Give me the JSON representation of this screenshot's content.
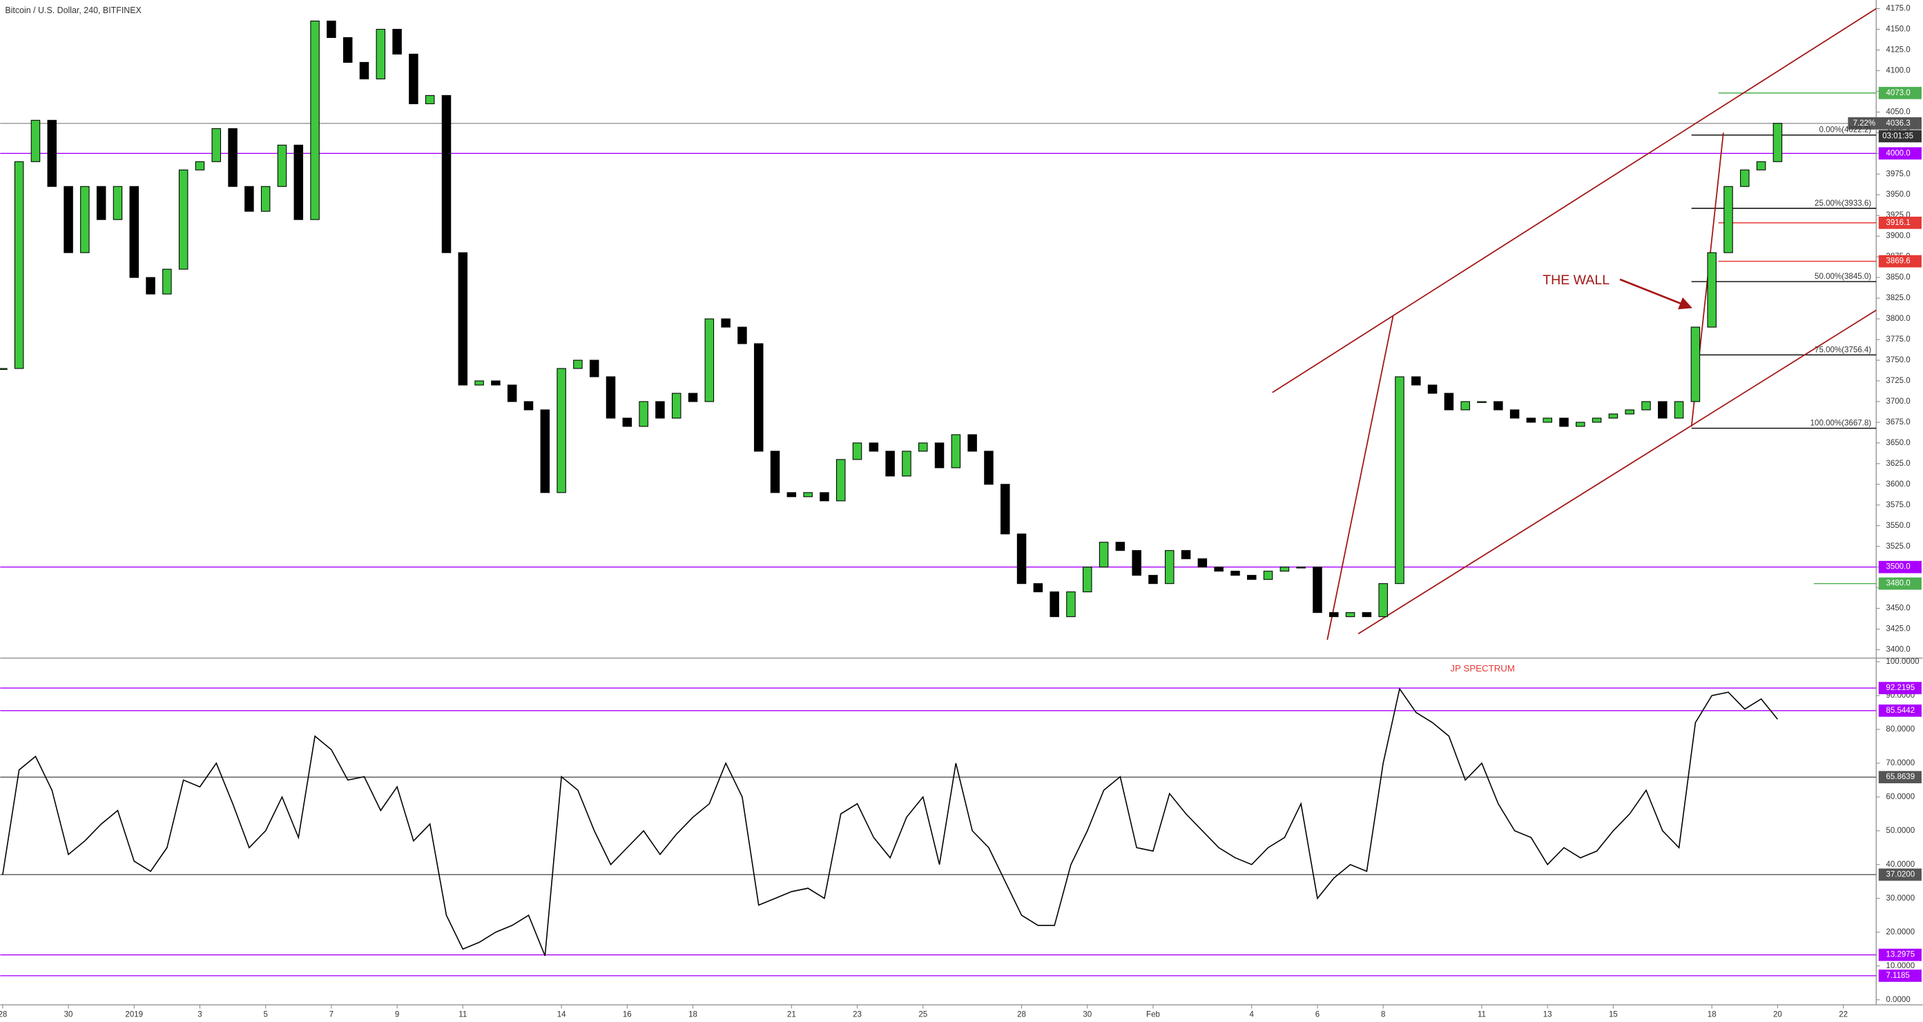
{
  "chart_data": [
    {
      "type": "candlestick",
      "title": "Bitcoin / U.S. Dollar, 240, BITFINEX",
      "annotation": "THE WALL",
      "x": [
        0,
        0.5,
        1,
        1.5,
        2,
        2.5,
        3,
        3.5,
        4,
        4.5,
        5,
        5.5,
        6,
        6.5,
        7,
        7.5,
        8,
        8.5,
        9,
        9.5,
        10,
        10.5,
        11,
        11.5,
        12,
        12.5,
        13,
        13.5,
        14,
        14.5,
        15,
        15.5,
        16,
        16.5,
        17,
        17.5,
        18,
        18.5,
        19,
        19.5,
        20,
        20.5,
        21,
        21.5,
        22,
        22.5,
        23,
        23.5,
        24,
        24.5,
        25,
        25.5,
        26,
        26.5,
        27,
        27.5,
        28,
        28.5,
        29,
        29.5,
        30,
        30.5,
        31,
        31.5,
        32,
        32.5,
        33,
        33.5,
        34,
        34.5,
        35,
        35.5,
        36,
        36.5,
        37,
        37.5,
        38,
        38.5,
        39,
        39.5,
        40,
        40.5,
        41,
        41.5,
        42,
        42.5,
        43,
        43.5,
        44,
        44.5,
        45,
        45.5,
        46,
        46.5,
        47,
        47.5,
        48,
        48.5,
        49,
        49.5,
        50,
        50.5,
        51,
        51.5,
        52,
        52.5,
        53,
        53.5,
        54
      ],
      "close": [
        3740,
        3990,
        4040,
        3960,
        3880,
        3960,
        3920,
        3960,
        3850,
        3830,
        3860,
        3980,
        3990,
        4030,
        3960,
        3930,
        3960,
        4010,
        3920,
        4160,
        4140,
        4110,
        4090,
        4150,
        4120,
        4060,
        4070,
        3880,
        3720,
        3725,
        3720,
        3700,
        3690,
        3590,
        3740,
        3750,
        3730,
        3680,
        3670,
        3700,
        3680,
        3710,
        3700,
        3800,
        3790,
        3770,
        3640,
        3590,
        3585,
        3590,
        3580,
        3630,
        3650,
        3640,
        3610,
        3640,
        3650,
        3620,
        3660,
        3640,
        3600,
        3540,
        3480,
        3470,
        3440,
        3470,
        3500,
        3530,
        3520,
        3490,
        3480,
        3520,
        3510,
        3500,
        3495,
        3490,
        3485,
        3495,
        3500,
        3500,
        3445,
        3440,
        3445,
        3440,
        3480,
        3730,
        3720,
        3710,
        3690,
        3700,
        3700,
        3690,
        3680,
        3675,
        3680,
        3670,
        3675,
        3680,
        3685,
        3690,
        3700,
        3680,
        3700,
        3790,
        3880,
        3960,
        3980,
        3990,
        4036.3
      ],
      "up_color": "#3ec83e",
      "down_color": "#000000",
      "grid": false,
      "xlim": [
        -0.075,
        57
      ],
      "ylim": [
        3390,
        4185.4
      ],
      "yticks": [
        {
          "value": 3400,
          "label": "3400.0"
        },
        {
          "value": 3425,
          "label": "3425.0"
        },
        {
          "value": 3450,
          "label": "3450.0"
        },
        {
          "value": 3475,
          "label": "3475.0"
        },
        {
          "value": 3500,
          "label": "3500.0"
        },
        {
          "value": 3525,
          "label": "3525.0"
        },
        {
          "value": 3550,
          "label": "3550.0"
        },
        {
          "value": 3575,
          "label": "3575.0"
        },
        {
          "value": 3600,
          "label": "3600.0"
        },
        {
          "value": 3625,
          "label": "3625.0"
        },
        {
          "value": 3650,
          "label": "3650.0"
        },
        {
          "value": 3675,
          "label": "3675.0"
        },
        {
          "value": 3700,
          "label": "3700.0"
        },
        {
          "value": 3725,
          "label": "3725.0"
        },
        {
          "value": 3750,
          "label": "3750.0"
        },
        {
          "value": 3775,
          "label": "3775.0"
        },
        {
          "value": 3800,
          "label": "3800.0"
        },
        {
          "value": 3825,
          "label": "3825.0"
        },
        {
          "value": 3850,
          "label": "3850.0"
        },
        {
          "value": 3875,
          "label": "3875.0"
        },
        {
          "value": 3900,
          "label": "3900.0"
        },
        {
          "value": 3925,
          "label": "3925.0"
        },
        {
          "value": 3950,
          "label": "3950.0"
        },
        {
          "value": 3975,
          "label": "3975.0"
        },
        {
          "value": 4000,
          "label": "4000.0"
        },
        {
          "value": 4025,
          "label": "4025.0"
        },
        {
          "value": 4050,
          "label": "4050.0"
        },
        {
          "value": 4075,
          "label": "4075.0"
        },
        {
          "value": 4100,
          "label": "4100.0"
        },
        {
          "value": 4125,
          "label": "4125.0"
        },
        {
          "value": 4150,
          "label": "4150.0"
        },
        {
          "value": 4175,
          "label": "4175.0"
        }
      ],
      "levels": [
        {
          "value": 4073,
          "label": "4073.0",
          "color": "#4caf50",
          "from": 52.2
        },
        {
          "value": 4036.3,
          "label": "4036.3",
          "color": "#9e9e9e",
          "from": -0.075,
          "change": "7.22%",
          "countdown": "03:01:35"
        },
        {
          "value": 4000,
          "label": "4000.0",
          "color": "#aa00ff",
          "from": -0.075
        },
        {
          "value": 3916.1,
          "label": "3916.1",
          "color": "#e53935",
          "from": 52.2
        },
        {
          "value": 3869.6,
          "label": "3869.6",
          "color": "#e53935",
          "from": 52.2
        },
        {
          "value": 3500,
          "label": "3500.0",
          "color": "#aa00ff",
          "from": -0.075
        },
        {
          "value": 3480,
          "label": "3480.0",
          "color": "#4caf50",
          "from": 55.1
        }
      ],
      "fib": {
        "color": "#000000",
        "from": 51.38,
        "to": 57,
        "levels": [
          {
            "value": 4022.2,
            "label": "0.00%(4022.2)"
          },
          {
            "value": 3933.6,
            "label": "25.00%(3933.6)"
          },
          {
            "value": 3845.0,
            "label": "50.00%(3845.0)"
          },
          {
            "value": 3756.4,
            "label": "75.00%(3756.4)"
          },
          {
            "value": 3667.8,
            "label": "100.00%(3667.8)"
          }
        ]
      },
      "trend_lines": [
        {
          "x": [
            38.63,
            57
          ],
          "y": [
            3711,
            4175
          ],
          "color": "#a31515"
        },
        {
          "x": [
            41.24,
            57
          ],
          "y": [
            3419.3,
            3810.5
          ],
          "color": "#a31515"
        },
        {
          "x": [
            40.3,
            42.3
          ],
          "y": [
            3412,
            3803
          ],
          "color": "#a31515"
        },
        {
          "x": [
            51.38,
            52.35
          ],
          "y": [
            3669.7,
            4025
          ],
          "color": "#a31515"
        }
      ]
    },
    {
      "type": "line",
      "title": "JP SPECTRUM",
      "title_color": "#e53935",
      "color": "#000000",
      "x": [
        0,
        0.5,
        1,
        1.5,
        2,
        2.5,
        3,
        3.5,
        4,
        4.5,
        5,
        5.5,
        6,
        6.5,
        7,
        7.5,
        8,
        8.5,
        9,
        9.5,
        10,
        10.5,
        11,
        11.5,
        12,
        12.5,
        13,
        13.5,
        14,
        14.5,
        15,
        15.5,
        16,
        16.5,
        17,
        17.5,
        18,
        18.5,
        19,
        19.5,
        20,
        20.5,
        21,
        21.5,
        22,
        22.5,
        23,
        23.5,
        24,
        24.5,
        25,
        25.5,
        26,
        26.5,
        27,
        27.5,
        28,
        28.5,
        29,
        29.5,
        30,
        30.5,
        31,
        31.5,
        32,
        32.5,
        33,
        33.5,
        34,
        34.5,
        35,
        35.5,
        36,
        36.5,
        37,
        37.5,
        38,
        38.5,
        39,
        39.5,
        40,
        40.5,
        41,
        41.5,
        42,
        42.5,
        43,
        43.5,
        44,
        44.5,
        45,
        45.5,
        46,
        46.5,
        47,
        47.5,
        48,
        48.5,
        49,
        49.5,
        50,
        50.5,
        51,
        51.5,
        52,
        52.5,
        53,
        53.5,
        54
      ],
      "values": [
        37,
        68,
        72,
        62,
        43,
        47,
        52,
        56,
        41,
        38,
        45,
        65,
        63,
        70,
        58,
        45,
        50,
        60,
        48,
        78,
        74,
        65,
        66,
        56,
        63,
        47,
        52,
        25,
        15,
        17,
        20,
        22,
        25,
        13,
        66,
        62,
        50,
        40,
        45,
        50,
        43,
        49,
        54,
        58,
        70,
        60,
        28,
        30,
        32,
        33,
        30,
        55,
        58,
        48,
        42,
        54,
        60,
        40,
        70,
        50,
        45,
        35,
        25,
        22,
        22,
        40,
        50,
        62,
        66,
        45,
        44,
        61,
        55,
        50,
        45,
        42,
        40,
        45,
        48,
        58,
        30,
        36,
        40,
        38,
        70,
        92,
        85,
        82,
        78,
        65,
        70,
        58,
        50,
        48,
        40,
        45,
        42,
        44,
        50,
        55,
        62,
        50,
        45,
        82,
        90,
        91,
        86,
        89,
        83
      ],
      "xlim": [
        -0.075,
        57
      ],
      "ylim": [
        -1.5,
        101.1
      ],
      "yticks": [
        {
          "value": 0,
          "label": "0.0000"
        },
        {
          "value": 10,
          "label": "10.0000"
        },
        {
          "value": 20,
          "label": "20.0000"
        },
        {
          "value": 30,
          "label": "30.0000"
        },
        {
          "value": 40,
          "label": "40.0000"
        },
        {
          "value": 50,
          "label": "50.0000"
        },
        {
          "value": 60,
          "label": "60.0000"
        },
        {
          "value": 70,
          "label": "70.0000"
        },
        {
          "value": 80,
          "label": "80.0000"
        },
        {
          "value": 90,
          "label": "90.0000"
        },
        {
          "value": 100,
          "label": "100.0000"
        }
      ],
      "xticks": [
        {
          "value": 0,
          "label": "28"
        },
        {
          "value": 2,
          "label": "30"
        },
        {
          "value": 4,
          "label": "2019"
        },
        {
          "value": 6,
          "label": "3"
        },
        {
          "value": 8,
          "label": "5"
        },
        {
          "value": 10,
          "label": "7"
        },
        {
          "value": 12,
          "label": "9"
        },
        {
          "value": 14,
          "label": "11"
        },
        {
          "value": 17,
          "label": "14"
        },
        {
          "value": 19,
          "label": "16"
        },
        {
          "value": 21,
          "label": "18"
        },
        {
          "value": 24,
          "label": "21"
        },
        {
          "value": 26,
          "label": "23"
        },
        {
          "value": 28,
          "label": "25"
        },
        {
          "value": 31,
          "label": "28"
        },
        {
          "value": 33,
          "label": "30"
        },
        {
          "value": 35,
          "label": "Feb"
        },
        {
          "value": 38,
          "label": "4"
        },
        {
          "value": 40,
          "label": "6"
        },
        {
          "value": 42,
          "label": "8"
        },
        {
          "value": 45,
          "label": "11"
        },
        {
          "value": 47,
          "label": "13"
        },
        {
          "value": 49,
          "label": "15"
        },
        {
          "value": 52,
          "label": "18"
        },
        {
          "value": 54,
          "label": "20"
        },
        {
          "value": 56,
          "label": "22"
        }
      ],
      "levels": [
        {
          "value": 92.2195,
          "label": "92.2195",
          "color": "#aa00ff",
          "from": -0.075
        },
        {
          "value": 85.5442,
          "label": "85.5442",
          "color": "#aa00ff",
          "from": -0.075
        },
        {
          "value": 65.8639,
          "label": "65.8639",
          "color": "#555555",
          "from": -0.075
        },
        {
          "value": 37.02,
          "label": "37.0200",
          "color": "#555555",
          "from": -0.075
        },
        {
          "value": 13.2975,
          "label": "13.2975",
          "color": "#aa00ff",
          "from": -0.075
        },
        {
          "value": 7.1185,
          "label": "7.1185",
          "color": "#aa00ff",
          "from": -0.075
        }
      ]
    }
  ]
}
